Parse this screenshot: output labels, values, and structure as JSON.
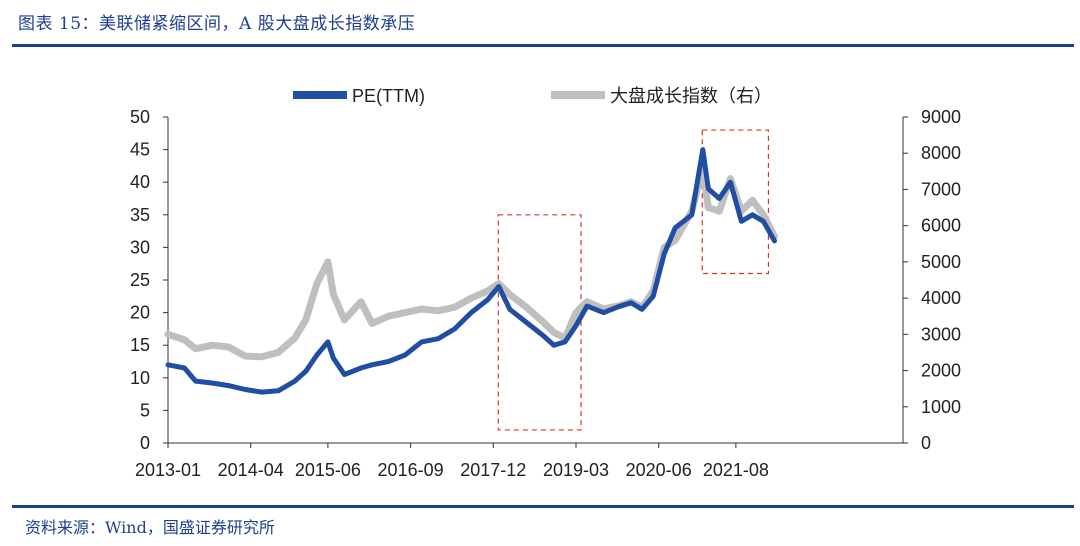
{
  "title": "图表 15：美联储紧缩区间，A 股大盘成长指数承压",
  "source": "资料来源：Wind，国盛证券研究所",
  "chart_data": {
    "type": "line",
    "x_tick_labels": [
      "2013-01",
      "2014-04",
      "2015-06",
      "2016-09",
      "2017-12",
      "2019-03",
      "2020-06",
      "2021-08"
    ],
    "y_left": {
      "ylim": [
        0,
        50
      ],
      "ticks": [
        0,
        5,
        10,
        15,
        20,
        25,
        30,
        35,
        40,
        45,
        50
      ]
    },
    "y_right": {
      "ylim": [
        0,
        9000
      ],
      "ticks": [
        0,
        1000,
        2000,
        3000,
        4000,
        5000,
        6000,
        7000,
        8000,
        9000
      ]
    },
    "legend_position": "top-center",
    "highlight_boxes": [
      {
        "x_start": "2017-12",
        "x_end": "2019-03",
        "y_left": [
          2,
          35
        ]
      },
      {
        "x_start": "2021-01",
        "x_end": "2022-01",
        "y_left": [
          26,
          48
        ]
      }
    ],
    "series": [
      {
        "name": "PE(TTM)",
        "axis": "left",
        "color": "#1f4ea3",
        "points": [
          [
            "2013-01",
            12.0
          ],
          [
            "2013-04",
            11.5
          ],
          [
            "2013-06",
            9.5
          ],
          [
            "2013-09",
            9.2
          ],
          [
            "2013-12",
            8.8
          ],
          [
            "2014-03",
            8.2
          ],
          [
            "2014-06",
            7.8
          ],
          [
            "2014-09",
            8.0
          ],
          [
            "2014-12",
            9.5
          ],
          [
            "2015-02",
            11.0
          ],
          [
            "2015-04",
            13.5
          ],
          [
            "2015-06",
            15.5
          ],
          [
            "2015-07",
            13.0
          ],
          [
            "2015-09",
            10.5
          ],
          [
            "2015-12",
            11.5
          ],
          [
            "2016-02",
            12.0
          ],
          [
            "2016-05",
            12.5
          ],
          [
            "2016-08",
            13.5
          ],
          [
            "2016-11",
            15.5
          ],
          [
            "2017-02",
            16.0
          ],
          [
            "2017-05",
            17.5
          ],
          [
            "2017-08",
            20.0
          ],
          [
            "2017-11",
            22.0
          ],
          [
            "2018-01",
            24.0
          ],
          [
            "2018-03",
            20.5
          ],
          [
            "2018-06",
            18.5
          ],
          [
            "2018-09",
            16.5
          ],
          [
            "2018-11",
            15.0
          ],
          [
            "2019-01",
            15.5
          ],
          [
            "2019-03",
            18.0
          ],
          [
            "2019-05",
            21.0
          ],
          [
            "2019-08",
            20.0
          ],
          [
            "2019-11",
            21.0
          ],
          [
            "2020-01",
            21.5
          ],
          [
            "2020-03",
            20.5
          ],
          [
            "2020-05",
            22.5
          ],
          [
            "2020-07",
            29.0
          ],
          [
            "2020-09",
            33.0
          ],
          [
            "2020-12",
            35.0
          ],
          [
            "2021-02",
            45.0
          ],
          [
            "2021-03",
            39.0
          ],
          [
            "2021-05",
            37.5
          ],
          [
            "2021-07",
            40.0
          ],
          [
            "2021-09",
            34.0
          ],
          [
            "2021-11",
            35.0
          ],
          [
            "2022-01",
            34.0
          ],
          [
            "2022-03",
            31.0
          ]
        ]
      },
      {
        "name": "大盘成长指数（右）",
        "axis": "right",
        "color": "#bfbfbf",
        "points": [
          [
            "2013-01",
            3000
          ],
          [
            "2013-04",
            2850
          ],
          [
            "2013-06",
            2600
          ],
          [
            "2013-09",
            2700
          ],
          [
            "2013-12",
            2650
          ],
          [
            "2014-03",
            2400
          ],
          [
            "2014-06",
            2380
          ],
          [
            "2014-09",
            2500
          ],
          [
            "2014-12",
            2900
          ],
          [
            "2015-02",
            3400
          ],
          [
            "2015-04",
            4400
          ],
          [
            "2015-06",
            5000
          ],
          [
            "2015-07",
            4100
          ],
          [
            "2015-09",
            3400
          ],
          [
            "2015-12",
            3900
          ],
          [
            "2016-02",
            3300
          ],
          [
            "2016-05",
            3500
          ],
          [
            "2016-08",
            3600
          ],
          [
            "2016-11",
            3700
          ],
          [
            "2017-02",
            3650
          ],
          [
            "2017-05",
            3750
          ],
          [
            "2017-08",
            4000
          ],
          [
            "2017-11",
            4200
          ],
          [
            "2018-01",
            4400
          ],
          [
            "2018-03",
            4100
          ],
          [
            "2018-06",
            3750
          ],
          [
            "2018-09",
            3350
          ],
          [
            "2018-11",
            3050
          ],
          [
            "2019-01",
            2900
          ],
          [
            "2019-03",
            3600
          ],
          [
            "2019-05",
            3900
          ],
          [
            "2019-08",
            3700
          ],
          [
            "2019-11",
            3800
          ],
          [
            "2020-01",
            3900
          ],
          [
            "2020-03",
            3750
          ],
          [
            "2020-05",
            4200
          ],
          [
            "2020-07",
            5400
          ],
          [
            "2020-09",
            5600
          ],
          [
            "2020-12",
            6400
          ],
          [
            "2021-02",
            7600
          ],
          [
            "2021-03",
            6500
          ],
          [
            "2021-05",
            6400
          ],
          [
            "2021-07",
            7300
          ],
          [
            "2021-09",
            6400
          ],
          [
            "2021-11",
            6700
          ],
          [
            "2022-01",
            6300
          ],
          [
            "2022-03",
            5700
          ]
        ]
      }
    ]
  }
}
